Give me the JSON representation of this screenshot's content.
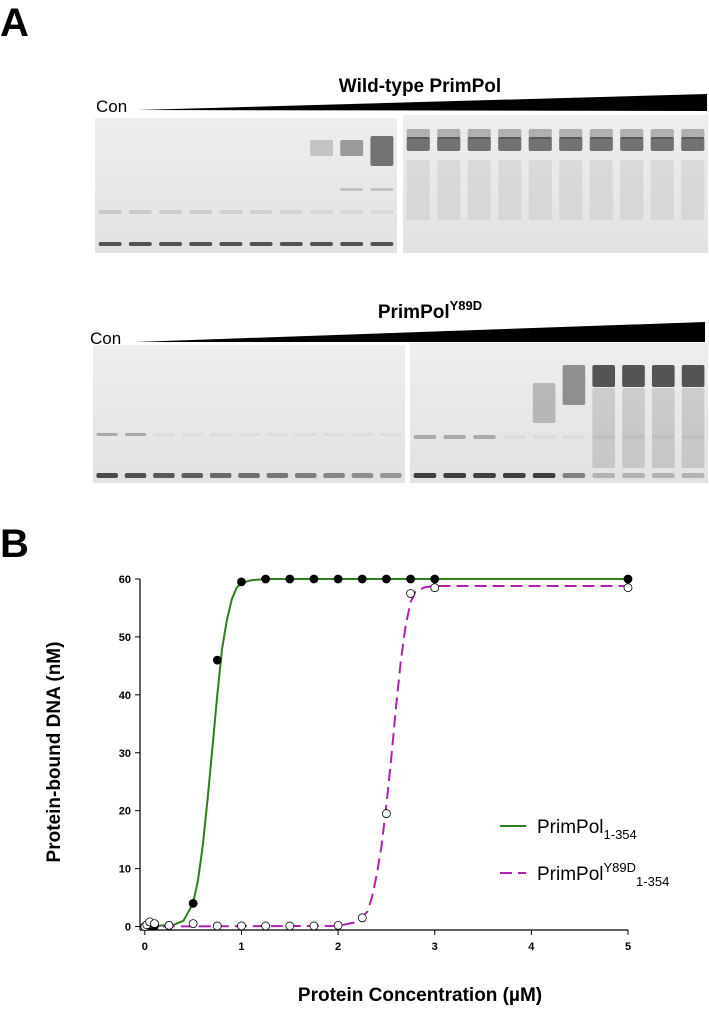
{
  "panel_a": {
    "label": "A",
    "gel1_title": "Wild-type PrimPol",
    "gel1_control": "Con",
    "gel2_title": "PrimPol",
    "gel2_title_superscript": "Y89D",
    "gel2_control": "Con"
  },
  "panel_b": {
    "label": "B"
  },
  "chart_data": {
    "type": "scatter",
    "xlabel": "Protein Concentration (µM)",
    "ylabel": "Protein-bound DNA (nM)",
    "xlim": [
      -0.05,
      5
    ],
    "ylim": [
      -0.6,
      60
    ],
    "xticks": [
      0,
      1,
      2,
      3,
      4,
      5
    ],
    "yticks": [
      0,
      10,
      20,
      30,
      40,
      50,
      60
    ],
    "grid": false,
    "legend": "lower right",
    "series": [
      {
        "name": "PrimPol",
        "name_subscript": "1-354",
        "color": "#2e7d1e",
        "marker_fill": "#000000",
        "line_style": "solid",
        "x": [
          0,
          0.05,
          0.1,
          0.25,
          0.5,
          0.75,
          1,
          1.25,
          1.5,
          1.75,
          2,
          2.25,
          2.5,
          2.75,
          3,
          5
        ],
        "values": [
          0,
          0.2,
          0.1,
          0.2,
          4,
          46,
          59.5,
          60,
          60,
          60,
          60,
          60,
          60,
          60,
          60,
          60
        ],
        "fit": {
          "x": [
            0,
            0.3,
            0.4,
            0.5,
            0.55,
            0.6,
            0.65,
            0.7,
            0.75,
            0.8,
            0.85,
            0.9,
            0.95,
            1,
            1.1,
            1.25,
            5
          ],
          "values": [
            0,
            0.3,
            1,
            4,
            8,
            14,
            22,
            31,
            40,
            48,
            53,
            56.5,
            58.5,
            59.3,
            59.8,
            60,
            60
          ]
        }
      },
      {
        "name": "PrimPol",
        "name_superscript": "Y89D",
        "name_subscript": "1-354",
        "color": "#b020b0",
        "marker_fill": "#ffffff",
        "line_style": "dashed",
        "x": [
          0,
          0.02,
          0.05,
          0.1,
          0.25,
          0.5,
          0.75,
          1,
          1.25,
          1.5,
          1.75,
          2,
          2.25,
          2.5,
          2.75,
          3,
          5
        ],
        "values": [
          0,
          0.3,
          0.8,
          0.5,
          0.2,
          0.5,
          0.1,
          0.1,
          0.1,
          0.1,
          0.1,
          0.2,
          1.5,
          19.5,
          57.5,
          58.5,
          58.5
        ],
        "fit": {
          "x": [
            0,
            2,
            2.2,
            2.3,
            2.35,
            2.4,
            2.45,
            2.5,
            2.55,
            2.6,
            2.65,
            2.7,
            2.75,
            2.8,
            2.9,
            3,
            5
          ],
          "values": [
            0,
            0.1,
            0.8,
            2.5,
            5,
            9,
            14,
            21,
            29,
            38,
            46,
            52,
            56,
            57.8,
            58.6,
            58.8,
            58.8
          ]
        }
      }
    ]
  }
}
